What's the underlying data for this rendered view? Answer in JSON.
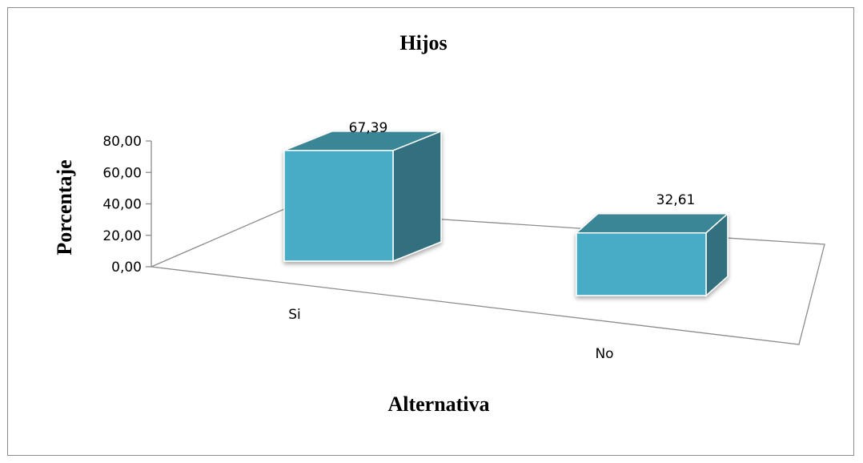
{
  "chart_data": {
    "type": "bar",
    "style": "3d-column",
    "title": "Hijos",
    "xlabel": "Alternativa",
    "ylabel": "Porcentaje",
    "categories": [
      "Si",
      "No"
    ],
    "values": [
      67.39,
      32.61
    ],
    "data_labels": [
      "67,39",
      "32,61"
    ],
    "yticks": [
      "0,00",
      "20,00",
      "40,00",
      "60,00",
      "80,00"
    ],
    "ylim": [
      0,
      80
    ],
    "grid": false,
    "legend": "none"
  },
  "colors": {
    "front": "#4aacc6",
    "side": "#31707f",
    "top": "#3a8696",
    "edge": "#ffffff",
    "floor": "#8c8c8c",
    "frame": "#8c8c8c"
  }
}
